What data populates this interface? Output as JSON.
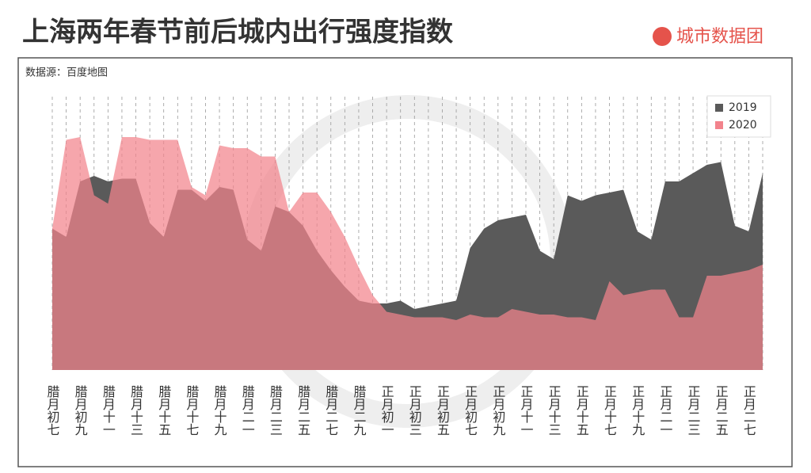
{
  "title": "上海两年春节前后城内出行强度指数",
  "brand": "城市数据团",
  "chart_data": {
    "type": "area",
    "source": "数据源：百度地图",
    "categories": [
      "腊月初七",
      null,
      "腊月初九",
      null,
      "腊月十一",
      null,
      "腊月十三",
      null,
      "腊月十五",
      null,
      "腊月十七",
      null,
      "腊月十九",
      null,
      "腊月二一",
      null,
      "腊月二三",
      null,
      "腊月二五",
      null,
      "腊月二七",
      null,
      "腊月二九",
      null,
      "正月初一",
      null,
      "正月初三",
      null,
      "正月初五",
      null,
      "正月初七",
      null,
      "正月初九",
      null,
      "正月十一",
      null,
      "正月十三",
      null,
      "正月十五",
      null,
      "正月十七",
      null,
      "正月十九",
      null,
      "正月二一",
      null,
      "正月二三",
      null,
      "正月二五",
      null,
      "正月二七",
      null
    ],
    "series": [
      {
        "name": "2019",
        "color": "#5a5a5a",
        "values": [
          51,
          48,
          68,
          70,
          68,
          69,
          69,
          53,
          48,
          65,
          65,
          61,
          66,
          65,
          47,
          43,
          59,
          57,
          52,
          43,
          36,
          30,
          25,
          24,
          24,
          25,
          22,
          23,
          24,
          25,
          44,
          51,
          54,
          55,
          56,
          43,
          40,
          63,
          61,
          63,
          64,
          65,
          50,
          47,
          68,
          68,
          71,
          74,
          75,
          52,
          50,
          71
        ]
      },
      {
        "name": "2020",
        "color": "#f2838c",
        "values": [
          51,
          83,
          84,
          63,
          60,
          84,
          84,
          83,
          83,
          83,
          66,
          63,
          81,
          80,
          80,
          77,
          77,
          57,
          64,
          64,
          57,
          48,
          37,
          27,
          21,
          20,
          19,
          19,
          19,
          18,
          20,
          19,
          19,
          22,
          21,
          20,
          20,
          19,
          19,
          18,
          32,
          27,
          28,
          29,
          29,
          19,
          19,
          34,
          34,
          35,
          36,
          38
        ]
      }
    ],
    "ylim": [
      0,
      100
    ],
    "legend": "upper right"
  }
}
